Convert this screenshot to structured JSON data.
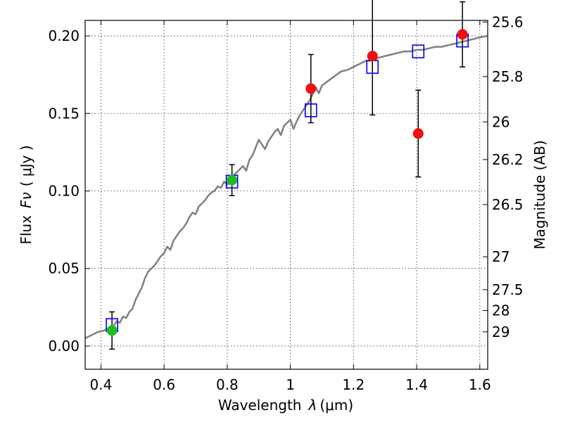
{
  "colors": {
    "model": "#808080",
    "detected": "#22bb22",
    "measured": "#ee1111",
    "model_box": "#0000ee",
    "errorbar": "#000000"
  },
  "chart_data": {
    "type": "scatter",
    "xlabel_prefix": "Wavelength",
    "xlabel_symbol": "λ",
    "xlabel_unit": "(μm)",
    "ylabel_prefix": "Flux",
    "ylabel_symbol": "Fν",
    "ylabel_unit": "( μJy )",
    "y2label": "Magnitude (AB)",
    "xlim": [
      0.35,
      1.625
    ],
    "ylim": [
      -0.015,
      0.21
    ],
    "grid": true,
    "x_ticks": [
      {
        "value": 0.4,
        "label": "0.4"
      },
      {
        "value": 0.6,
        "label": "0.6"
      },
      {
        "value": 0.8,
        "label": "0.8"
      },
      {
        "value": 1.0,
        "label": "1"
      },
      {
        "value": 1.2,
        "label": "1.2"
      },
      {
        "value": 1.4,
        "label": "1.4"
      },
      {
        "value": 1.6,
        "label": "1.6"
      }
    ],
    "y_ticks": [
      {
        "value": 0.0,
        "label": "0.00"
      },
      {
        "value": 0.05,
        "label": "0.05"
      },
      {
        "value": 0.1,
        "label": "0.10"
      },
      {
        "value": 0.15,
        "label": "0.15"
      },
      {
        "value": 0.2,
        "label": "0.20"
      }
    ],
    "mag_ticks": [
      {
        "value": 25.6,
        "label": "25.6"
      },
      {
        "value": 25.8,
        "label": "25.8"
      },
      {
        "value": 26.0,
        "label": "26"
      },
      {
        "value": 26.2,
        "label": "26.2"
      },
      {
        "value": 26.5,
        "label": "26.5"
      },
      {
        "value": 27.0,
        "label": "27"
      },
      {
        "value": 27.5,
        "label": "27.5"
      },
      {
        "value": 28.0,
        "label": "28"
      },
      {
        "value": 29.0,
        "label": "29"
      }
    ],
    "series": [
      {
        "kind": "model_spectrum",
        "x": [
          0.35,
          0.37,
          0.39,
          0.41,
          0.42,
          0.43,
          0.44,
          0.45,
          0.46,
          0.47,
          0.48,
          0.49,
          0.5,
          0.51,
          0.52,
          0.53,
          0.54,
          0.55,
          0.56,
          0.57,
          0.58,
          0.59,
          0.6,
          0.61,
          0.62,
          0.63,
          0.64,
          0.65,
          0.66,
          0.67,
          0.68,
          0.69,
          0.7,
          0.71,
          0.72,
          0.73,
          0.74,
          0.75,
          0.76,
          0.77,
          0.78,
          0.79,
          0.8,
          0.81,
          0.82,
          0.83,
          0.84,
          0.85,
          0.86,
          0.87,
          0.88,
          0.89,
          0.9,
          0.91,
          0.92,
          0.93,
          0.94,
          0.95,
          0.96,
          0.97,
          0.98,
          0.99,
          1.0,
          1.01,
          1.02,
          1.03,
          1.04,
          1.05,
          1.06,
          1.07,
          1.08,
          1.09,
          1.1,
          1.12,
          1.14,
          1.16,
          1.18,
          1.2,
          1.22,
          1.24,
          1.26,
          1.28,
          1.3,
          1.32,
          1.34,
          1.36,
          1.38,
          1.4,
          1.42,
          1.44,
          1.46,
          1.48,
          1.5,
          1.52,
          1.54,
          1.56,
          1.58,
          1.6,
          1.625
        ],
        "y": [
          0.005,
          0.007,
          0.009,
          0.01,
          0.011,
          0.012,
          0.013,
          0.016,
          0.015,
          0.019,
          0.018,
          0.022,
          0.024,
          0.03,
          0.034,
          0.038,
          0.044,
          0.048,
          0.05,
          0.052,
          0.055,
          0.058,
          0.06,
          0.064,
          0.062,
          0.068,
          0.071,
          0.074,
          0.076,
          0.079,
          0.083,
          0.086,
          0.085,
          0.09,
          0.092,
          0.094,
          0.097,
          0.099,
          0.1,
          0.103,
          0.102,
          0.106,
          0.104,
          0.109,
          0.11,
          0.112,
          0.114,
          0.116,
          0.113,
          0.12,
          0.123,
          0.128,
          0.133,
          0.13,
          0.127,
          0.132,
          0.135,
          0.138,
          0.14,
          0.136,
          0.142,
          0.144,
          0.146,
          0.14,
          0.145,
          0.149,
          0.152,
          0.155,
          0.158,
          0.162,
          0.167,
          0.163,
          0.168,
          0.171,
          0.174,
          0.177,
          0.178,
          0.18,
          0.182,
          0.184,
          0.184,
          0.186,
          0.187,
          0.188,
          0.189,
          0.19,
          0.19,
          0.191,
          0.191,
          0.192,
          0.193,
          0.193,
          0.194,
          0.195,
          0.196,
          0.197,
          0.198,
          0.199,
          0.2
        ]
      },
      {
        "kind": "model_box",
        "x": [
          0.435,
          0.815,
          1.065,
          1.26,
          1.405,
          1.545
        ],
        "y": [
          0.0135,
          0.106,
          0.152,
          0.18,
          0.19,
          0.197
        ]
      },
      {
        "kind": "detected",
        "x": [
          0.435,
          0.815
        ],
        "y": [
          0.01,
          0.107
        ],
        "err": [
          0.012,
          0.01
        ]
      },
      {
        "kind": "measured",
        "x": [
          1.065,
          1.26,
          1.405,
          1.545
        ],
        "y": [
          0.166,
          0.187,
          0.137,
          0.201
        ],
        "err": [
          0.022,
          0.038,
          0.028,
          0.021
        ]
      }
    ]
  }
}
